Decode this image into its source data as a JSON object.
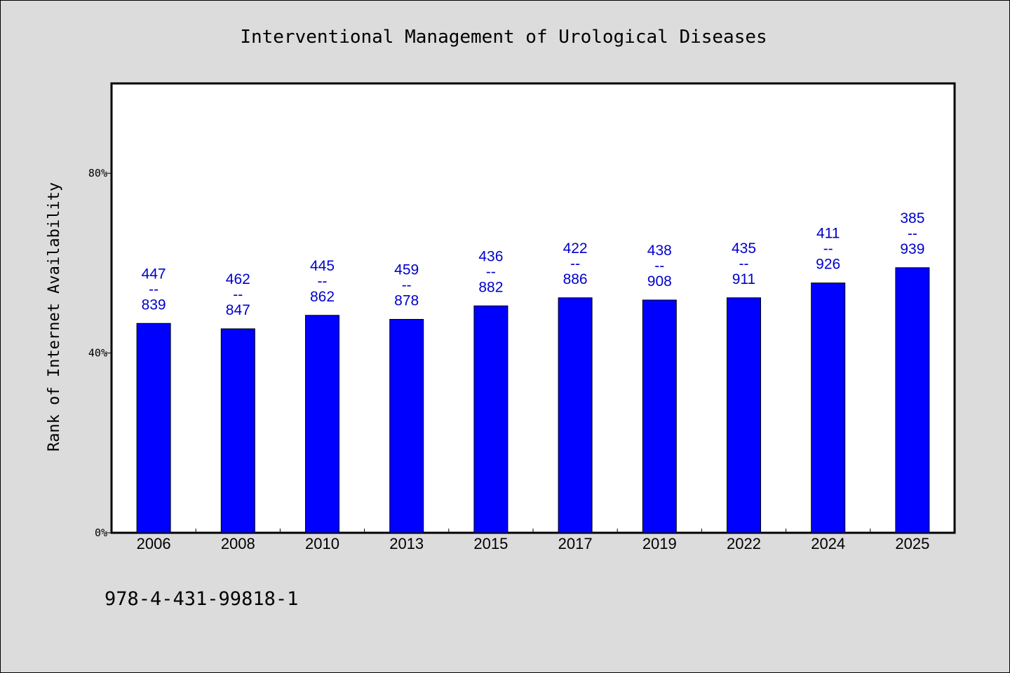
{
  "chart_data": {
    "type": "bar",
    "title": "Interventional Management of Urological Diseases",
    "xlabel": "",
    "ylabel": "Rank of Internet Availability",
    "categories": [
      "2006",
      "2008",
      "2010",
      "2013",
      "2015",
      "2017",
      "2019",
      "2022",
      "2024",
      "2025"
    ],
    "values": [
      46.6,
      45.4,
      48.4,
      47.5,
      50.5,
      52.3,
      51.8,
      52.3,
      55.6,
      59.0
    ],
    "value_unit": "%",
    "labels": [
      {
        "top": "447",
        "sep": "--",
        "bottom": "839"
      },
      {
        "top": "462",
        "sep": "--",
        "bottom": "847"
      },
      {
        "top": "445",
        "sep": "--",
        "bottom": "862"
      },
      {
        "top": "459",
        "sep": "--",
        "bottom": "878"
      },
      {
        "top": "436",
        "sep": "--",
        "bottom": "882"
      },
      {
        "top": "422",
        "sep": "--",
        "bottom": "886"
      },
      {
        "top": "438",
        "sep": "--",
        "bottom": "908"
      },
      {
        "top": "435",
        "sep": "--",
        "bottom": "911"
      },
      {
        "top": "411",
        "sep": "--",
        "bottom": "926"
      },
      {
        "top": "385",
        "sep": "--",
        "bottom": "939"
      }
    ],
    "ylim": [
      0,
      100
    ],
    "yticks": [
      0,
      40,
      80
    ],
    "ytick_labels": [
      "0%",
      "40%",
      "80%"
    ],
    "grid": false,
    "bar_color": "#0000ff",
    "label_color": "#0000cc"
  },
  "footnote": "978-4-431-99818-1",
  "colors": {
    "background": "#dcdcdc",
    "plot_background": "#ffffff"
  }
}
